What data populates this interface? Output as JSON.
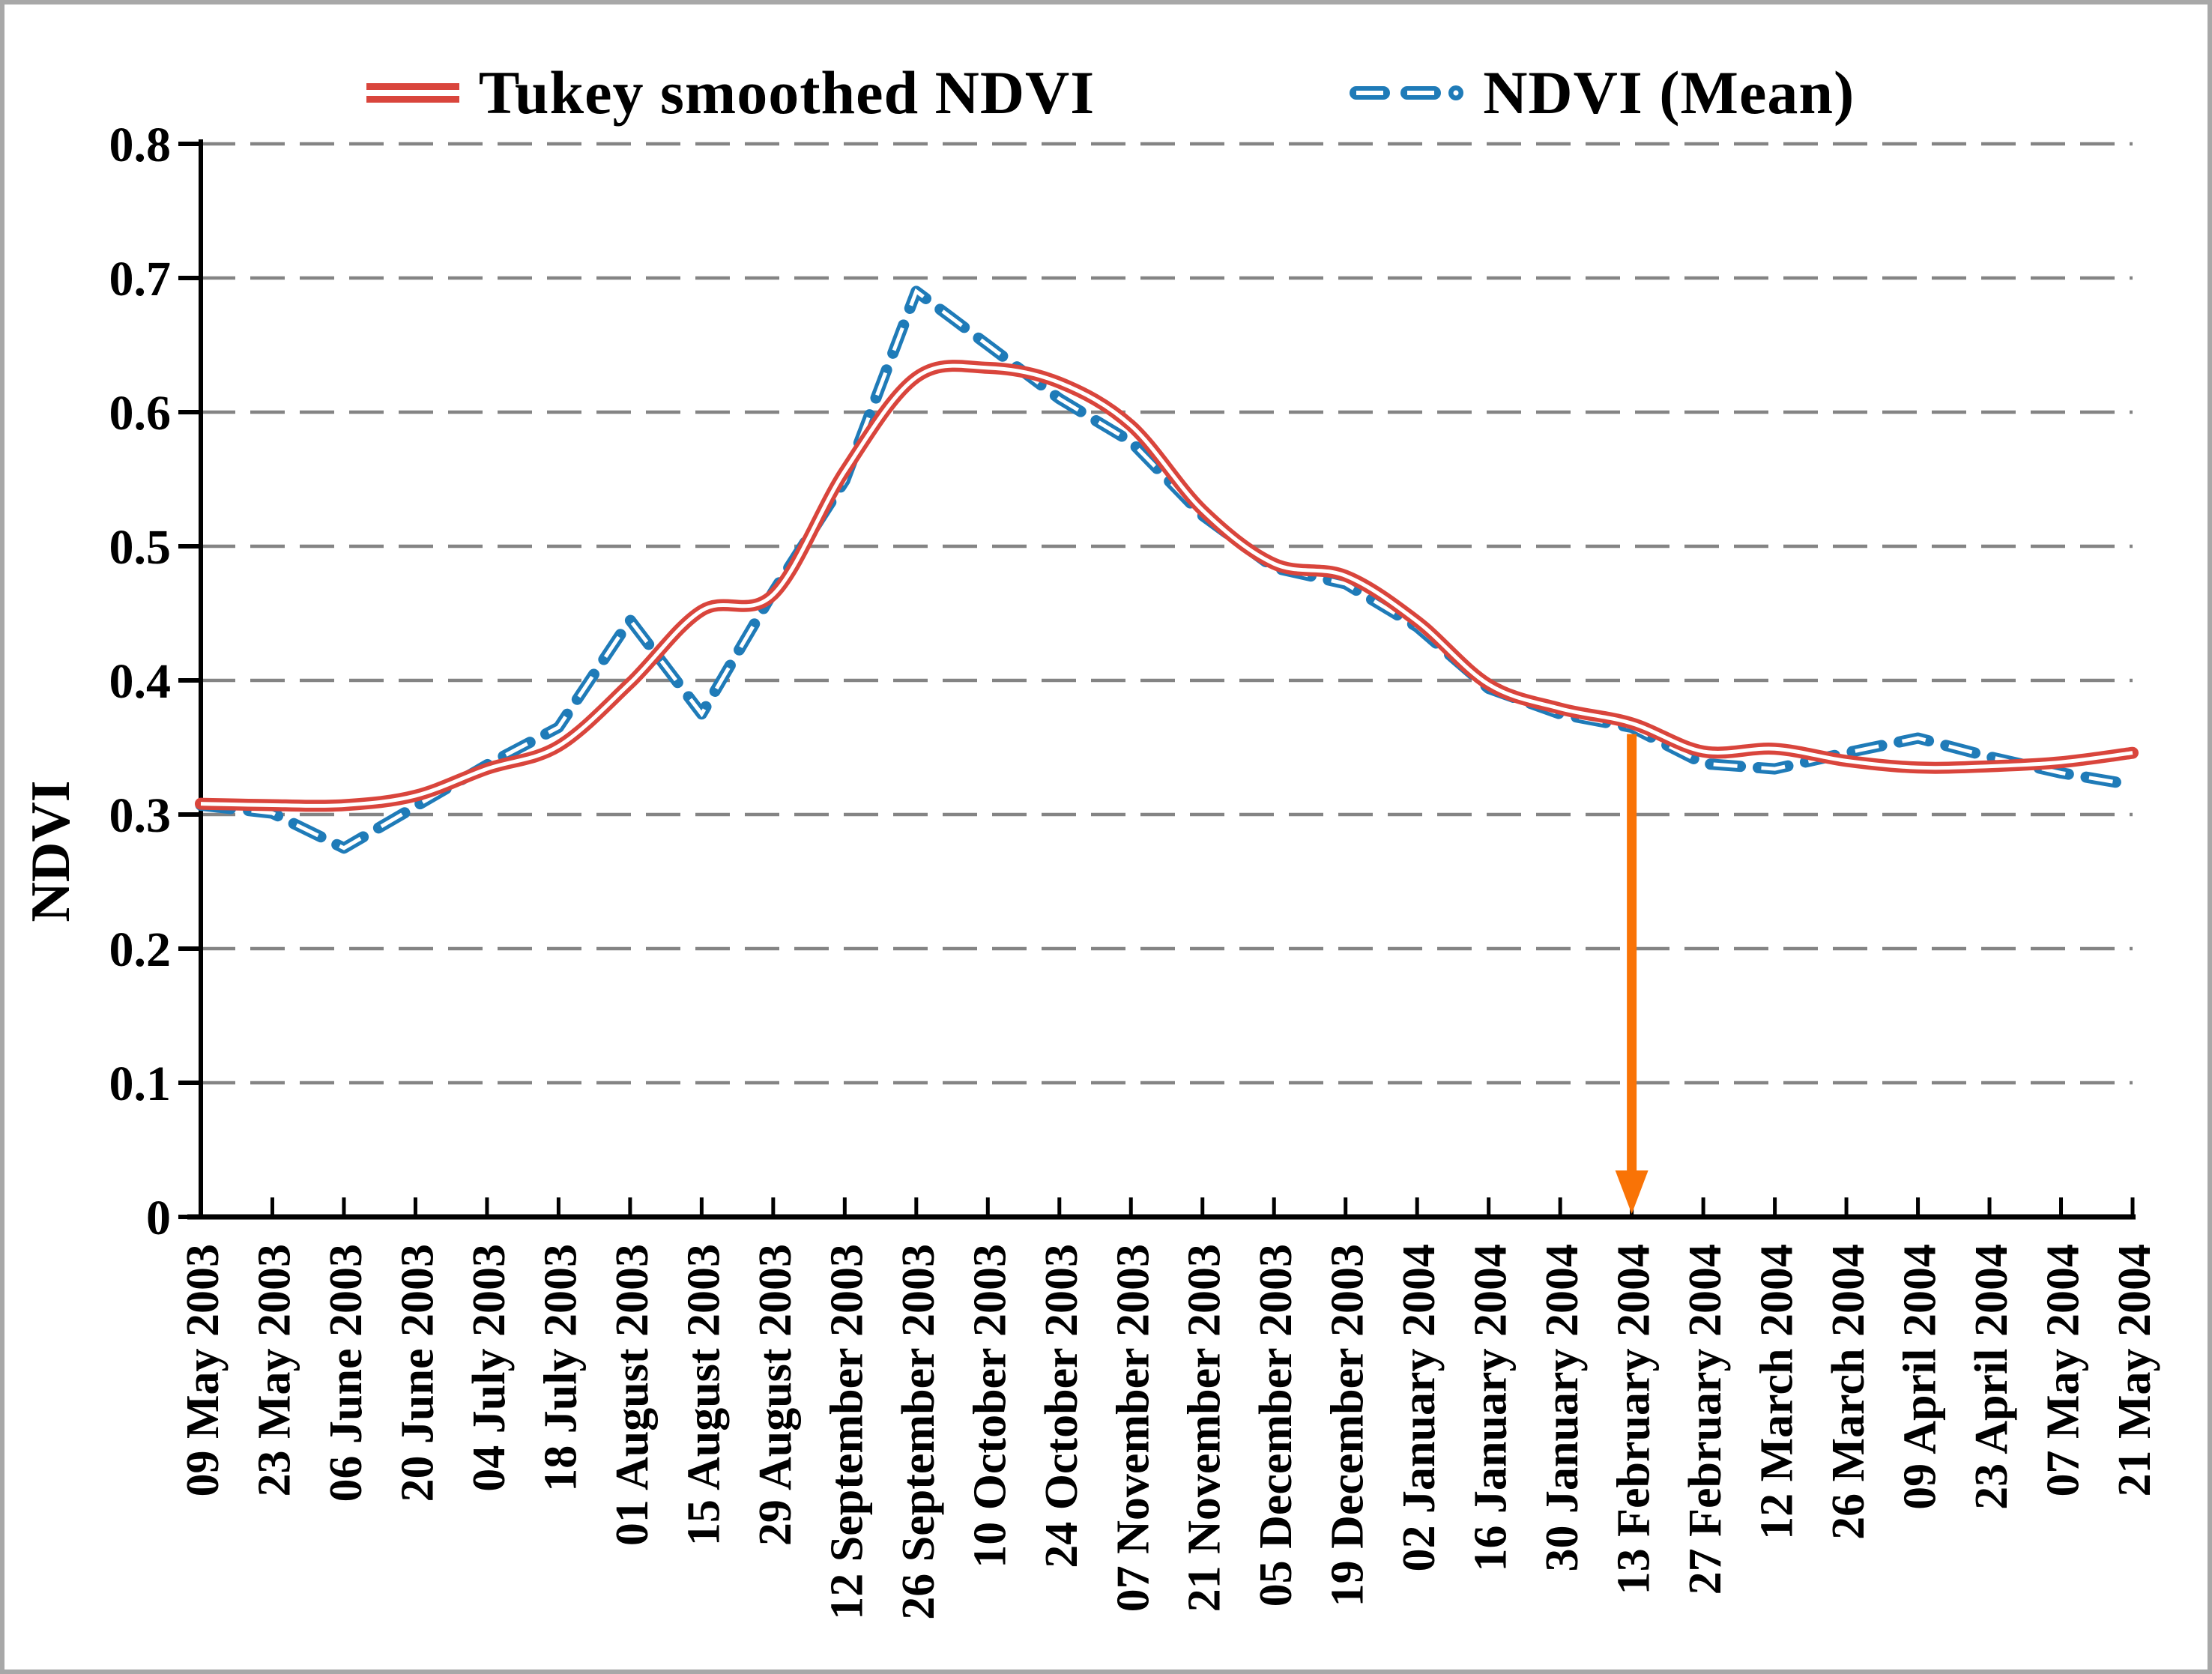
{
  "figure": {
    "background": "#ffffff",
    "border_color": "#a8a8a8"
  },
  "legend": {
    "items": [
      {
        "label": "Tukey smoothed NDVI",
        "marker": "red-double-line",
        "color": "#d9453c"
      },
      {
        "label": "NDVI (Mean)",
        "marker": "blue-dash-dash-dot",
        "color": "#1f7bb8"
      }
    ]
  },
  "y_axis": {
    "title": "NDVI",
    "min": 0,
    "max": 0.8,
    "step": 0.1,
    "tick_labels": [
      "0",
      "0.1",
      "0.2",
      "0.3",
      "0.4",
      "0.5",
      "0.6",
      "0.7",
      "0.8"
    ]
  },
  "annotation": {
    "shape": "down-arrow",
    "x_category": "13 February 2004",
    "from_value": 0.36,
    "to_value": 0,
    "color": "#f97306"
  },
  "colors": {
    "tukey_red": "#d9453c",
    "mean_blue": "#1f7bb8",
    "gridline_gray": "#848484",
    "axis_black": "#000000",
    "arrow_orange": "#f97306"
  },
  "chart_data": {
    "type": "line",
    "title": "",
    "xlabel": "",
    "ylabel": "NDVI",
    "ylim": [
      0,
      0.8
    ],
    "grid": "horizontal-dashed",
    "legend_position": "top-center",
    "categories": [
      "09 May 2003",
      "23 May 2003",
      "06 June 2003",
      "20 June 2003",
      "04 July 2003",
      "18 July 2003",
      "01 August 2003",
      "15 August 2003",
      "29 August 2003",
      "12 September 2003",
      "26 September 2003",
      "10 October 2003",
      "24 October 2003",
      "07 November 2003",
      "21 November 2003",
      "05 December 2003",
      "19 December 2003",
      "02 January 2004",
      "16 January 2004",
      "30 January 2004",
      "13 February 2004",
      "27 February 2004",
      "12 March 2004",
      "26 March 2004",
      "09 April 2004",
      "23 April 2004",
      "07 May 2004",
      "21 May 2004"
    ],
    "series": [
      {
        "name": "Tukey smoothed NDVI",
        "style": "solid-double-line",
        "smooth": true,
        "color": "#d9453c",
        "values": [
          0.308,
          0.307,
          0.307,
          0.314,
          0.334,
          0.351,
          0.398,
          0.452,
          0.464,
          0.556,
          0.626,
          0.633,
          0.622,
          0.59,
          0.527,
          0.487,
          0.478,
          0.444,
          0.397,
          0.379,
          0.368,
          0.347,
          0.349,
          0.34,
          0.335,
          0.336,
          0.339,
          0.346
        ]
      },
      {
        "name": "NDVI (Mean)",
        "style": "dashed-double-line",
        "smooth": false,
        "color": "#1f7bb8",
        "values": [
          0.307,
          0.301,
          0.275,
          0.306,
          0.337,
          0.365,
          0.445,
          0.375,
          0.466,
          0.549,
          0.69,
          0.65,
          0.61,
          0.578,
          0.523,
          0.484,
          0.472,
          0.44,
          0.394,
          0.375,
          0.365,
          0.338,
          0.334,
          0.346,
          0.357,
          0.343,
          0.331,
          0.322
        ]
      }
    ]
  }
}
